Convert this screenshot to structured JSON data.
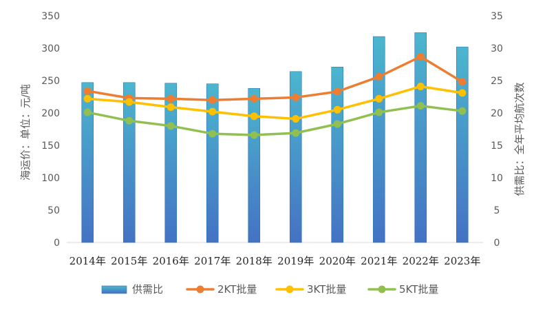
{
  "chart_data": {
    "type": "bar",
    "categories": [
      "2014年",
      "2015年",
      "2016年",
      "2017年",
      "2018年",
      "2019年",
      "2020年",
      "2021年",
      "2022年",
      "2023年"
    ],
    "bar_series": {
      "name": "供需比",
      "axis": "right",
      "values": [
        24.7,
        24.7,
        24.6,
        24.5,
        23.8,
        26.4,
        27.1,
        31.8,
        32.4,
        30.2
      ]
    },
    "line_series": [
      {
        "name": "2KT批量",
        "axis": "left",
        "color": "#ED7D31",
        "values": [
          234,
          223,
          222,
          220,
          222,
          224,
          233,
          256,
          287,
          248
        ]
      },
      {
        "name": "3KT批量",
        "axis": "left",
        "color": "#FFC000",
        "values": [
          222,
          217,
          209,
          202,
          195,
          191,
          205,
          222,
          241,
          231
        ]
      },
      {
        "name": "5KT批量",
        "axis": "left",
        "color": "#92C050",
        "values": [
          201,
          188,
          180,
          168,
          166,
          169,
          183,
          201,
          211,
          203
        ]
      }
    ],
    "ylabel_left": "海运价：单位：元/吨",
    "ylabel_right": "供需比：全年平均航次数",
    "ylim_left": [
      0,
      350
    ],
    "ylim_right": [
      0,
      35
    ],
    "yticks_left": [
      0,
      50,
      100,
      150,
      200,
      250,
      300,
      350
    ],
    "yticks_right": [
      0,
      5,
      10,
      15,
      20,
      25,
      30,
      35
    ],
    "grid": false,
    "legend_position": "bottom",
    "bar_gradient": {
      "top": "#4BB6CE",
      "bottom": "#4472C4"
    }
  }
}
